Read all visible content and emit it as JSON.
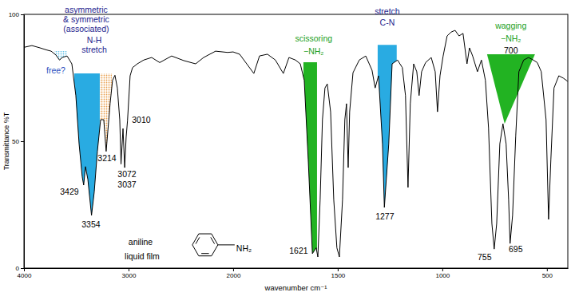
{
  "chart_data": {
    "type": "line",
    "color": "#000000",
    "x_label": "wavenumber cm⁻¹",
    "y_label": "Transmittance %T",
    "xlim": [
      4000,
      400
    ],
    "ylim": [
      0,
      100
    ],
    "xticks": [
      4000,
      3000,
      2000,
      1500,
      1000,
      500
    ],
    "yticks": [
      0,
      50,
      100
    ],
    "x": [
      4000,
      3924,
      3847,
      3786,
      3740,
      3695,
      3660,
      3634,
      3588,
      3542,
      3504,
      3473,
      3443,
      3429,
      3412,
      3389,
      3354,
      3328,
      3298,
      3267,
      3237,
      3214,
      3176,
      3153,
      3130,
      3107,
      3084,
      3072,
      3053,
      3037,
      3023,
      3010,
      2985,
      2962,
      2916,
      2855,
      2779,
      2702,
      2588,
      2473,
      2359,
      2282,
      2168,
      2053,
      2000,
      1969,
      1901,
      1874,
      1836,
      1798,
      1760,
      1733,
      1702,
      1679,
      1660,
      1641,
      1621,
      1603,
      1595,
      1584,
      1573,
      1561,
      1550,
      1534,
      1519,
      1504,
      1492,
      1477,
      1466,
      1458,
      1450,
      1443,
      1427,
      1397,
      1366,
      1336,
      1321,
      1305,
      1286,
      1277,
      1256,
      1240,
      1214,
      1191,
      1176,
      1164,
      1153,
      1137,
      1122,
      1111,
      1099,
      1080,
      1053,
      1034,
      1023,
      1011,
      996,
      977,
      958,
      939,
      920,
      901,
      882,
      870,
      855,
      832,
      813,
      794,
      779,
      763,
      752,
      740,
      725,
      710,
      695,
      683,
      676,
      664,
      649,
      634,
      611,
      588,
      565,
      546,
      527,
      504,
      492,
      481,
      466,
      443,
      420,
      401
    ],
    "values": [
      87,
      87.7,
      86.8,
      86,
      85.5,
      84,
      82,
      83,
      83.6,
      80.5,
      68,
      49,
      36,
      32.7,
      40,
      35,
      20.8,
      30,
      46,
      58.5,
      58.5,
      46,
      65,
      74,
      76,
      71,
      58.5,
      41,
      55,
      39.6,
      51.6,
      58,
      75.8,
      79,
      80.5,
      82,
      83,
      81,
      83.6,
      81.8,
      80.5,
      83,
      85.5,
      85,
      85.2,
      84.3,
      76.7,
      83.6,
      84.3,
      82,
      76.7,
      83,
      82,
      80.5,
      74,
      42.8,
      5.7,
      8,
      4.4,
      27,
      58.5,
      71,
      72.6,
      61.6,
      27,
      8,
      4.4,
      27,
      58.5,
      64.8,
      39.6,
      61.6,
      77,
      82,
      83.6,
      78,
      71,
      75.8,
      49,
      23.9,
      49,
      80.5,
      82,
      79,
      68,
      31.8,
      64.8,
      80.5,
      77.4,
      68,
      77.4,
      81,
      83,
      77.4,
      61.6,
      75.8,
      83.6,
      91.5,
      93,
      93.7,
      91.5,
      92.5,
      80.5,
      86.8,
      83.6,
      77.4,
      82,
      74,
      55.3,
      17.6,
      7.5,
      17.6,
      49,
      56.9,
      49,
      27,
      9.7,
      20.8,
      52,
      77.4,
      82,
      83,
      82,
      81,
      77.4,
      58.5,
      19.2,
      42.8,
      71,
      75.8,
      74.8,
      73.6
    ],
    "regions": [
      {
        "x": [
          3710,
          3588
        ],
        "y": 85.5,
        "color": "#6cc4e8",
        "line_style": "dotted"
      },
      {
        "x": [
          3519,
          3275
        ],
        "y": 76.7,
        "color": "#29abe2"
      },
      {
        "x": [
          3275,
          3160
        ],
        "y": 76.7,
        "color": "#e8a050",
        "line_style": "dotted"
      },
      {
        "x": [
          1664,
          1599
        ],
        "y": 81.1,
        "color": "#22b322"
      },
      {
        "x": [
          1309,
          1218
        ],
        "y": 88,
        "color": "#29abe2"
      },
      {
        "points": [
          [
            786,
            84.3
          ],
          [
            557,
            84.3
          ],
          [
            702,
            56.9
          ]
        ],
        "color": "#22b322"
      }
    ],
    "annotations": [
      {
        "text": "asymmetric",
        "x": 3405,
        "y": 101.9,
        "color": "#23238e"
      },
      {
        "text": "& symmetric",
        "x": 3405,
        "y": 98.1,
        "color": "#23238e"
      },
      {
        "text": "(associated)",
        "x": 3405,
        "y": 94.3,
        "color": "#23238e"
      },
      {
        "text": "N-H",
        "x": 3328,
        "y": 89.9,
        "color": "#23238e"
      },
      {
        "text": "stretch",
        "x": 3328,
        "y": 86.2,
        "color": "#23238e"
      },
      {
        "text": "free?",
        "x": 3695,
        "y": 78,
        "color": "#2a4fc0"
      },
      {
        "text": "3429",
        "x": 3565,
        "y": 30.2,
        "color": "#000000"
      },
      {
        "text": "3354",
        "x": 3359,
        "y": 17.3,
        "color": "#000000"
      },
      {
        "text": "3214",
        "x": 3206,
        "y": 43.4,
        "color": "#000000"
      },
      {
        "text": "3072",
        "x": 3015,
        "y": 37.1,
        "color": "#000000"
      },
      {
        "text": "3037",
        "x": 3015,
        "y": 33.0,
        "color": "#000000"
      },
      {
        "text": "3010",
        "x": 2878,
        "y": 58.5,
        "color": "#000000"
      },
      {
        "text": "scissoring",
        "x": 1615,
        "y": 90.6,
        "color": "#22a022"
      },
      {
        "text": "−NH₂",
        "x": 1615,
        "y": 85.5,
        "color": "#22a022"
      },
      {
        "text": "1621",
        "x": 1687,
        "y": 6.9,
        "color": "#000000"
      },
      {
        "text": "stretch",
        "x": 1263,
        "y": 101.3,
        "color": "#23238e"
      },
      {
        "text": "C-N",
        "x": 1263,
        "y": 96.9,
        "color": "#23238e"
      },
      {
        "text": "1277",
        "x": 1275,
        "y": 20.4,
        "color": "#000000"
      },
      {
        "text": "wagging",
        "x": 672,
        "y": 95.6,
        "color": "#22a022"
      },
      {
        "text": "−NH₂",
        "x": 672,
        "y": 90.6,
        "color": "#22a022"
      },
      {
        "text": "700",
        "x": 672,
        "y": 85.8,
        "color": "#000000"
      },
      {
        "text": "755",
        "x": 798,
        "y": 4.4,
        "color": "#000000"
      },
      {
        "text": "695",
        "x": 649,
        "y": 7.5,
        "color": "#000000"
      },
      {
        "text": "aniline",
        "x": 2885,
        "y": 10.4,
        "color": "#000000"
      },
      {
        "text": "liquid film",
        "x": 2870,
        "y": 4.7,
        "color": "#000000"
      }
    ],
    "structure": {
      "text": "NH₂",
      "x": 1985,
      "y": 7.9
    }
  }
}
